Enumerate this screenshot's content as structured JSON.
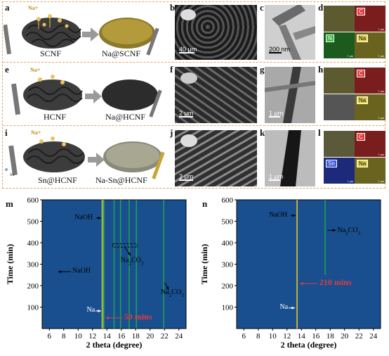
{
  "panels": {
    "a": "a",
    "b": "b",
    "c": "c",
    "d": "d",
    "e": "e",
    "f": "f",
    "g": "g",
    "h": "h",
    "i": "i",
    "j": "j",
    "k": "k",
    "l": "l",
    "m": "m",
    "n": "n"
  },
  "row1": {
    "ion": "Na+",
    "left": "SCNF",
    "right": "Na@SCNF",
    "b_scale": "40 μm",
    "c_scale": "200 nm",
    "maps": [
      "C",
      "N",
      "Na"
    ]
  },
  "row2": {
    "ion": "Na+",
    "left": "HCNF",
    "right": "Na@HCNF",
    "f_scale": "2 μm",
    "g_scale": "1 μm",
    "maps": [
      "C",
      "Na"
    ]
  },
  "row3": {
    "ion": "Na+",
    "sn": "Sn",
    "left": "Sn@HCNF",
    "right": "Na-Sn@HCNF",
    "j_scale": "2 μm",
    "k_scale": "1 μm",
    "maps": [
      "C",
      "Sn",
      "Na"
    ]
  },
  "map_scale": "1 μm",
  "colors": {
    "frame": "#e9a265",
    "heatmap_bg": "#1a4f8f",
    "annot_red": "#e23b3b"
  },
  "chart_data": [
    {
      "type": "heatmap",
      "panel": "m",
      "xlabel": "2 theta (degree)",
      "ylabel": "Time (min)",
      "xlim": [
        5,
        25
      ],
      "ylim": [
        0,
        600
      ],
      "xticks": [
        6,
        8,
        10,
        12,
        14,
        16,
        18,
        20,
        22,
        24
      ],
      "yticks": [
        100,
        200,
        300,
        400,
        500,
        600
      ],
      "peaks": [
        {
          "x": 13.35,
          "y_start": 0,
          "y_end": 600,
          "color": "#ffd21f"
        },
        {
          "x": 13.55,
          "y_start": 0,
          "y_end": 600,
          "color": "#2bd04a"
        },
        {
          "x": 15.0,
          "y_start": 0,
          "y_end": 600,
          "color": "#19a94d"
        },
        {
          "x": 15.9,
          "y_start": 0,
          "y_end": 600,
          "color": "#19a94d"
        },
        {
          "x": 17.1,
          "y_start": 0,
          "y_end": 600,
          "color": "#19a94d"
        },
        {
          "x": 18.1,
          "y_start": 0,
          "y_end": 600,
          "color": "#19a94d"
        },
        {
          "x": 21.9,
          "y_start": 0,
          "y_end": 600,
          "color": "#19a94d"
        }
      ],
      "annotations": {
        "naoh_top": "NaOH",
        "naoh_mid": "NaOH",
        "na2co3_box": "Na2CO3",
        "na2co3_right": "Na2CO3",
        "na": "Na",
        "time_mark": "50 mins"
      }
    },
    {
      "type": "heatmap",
      "panel": "n",
      "xlabel": "2 theta (degree)",
      "ylabel": "Time (min)",
      "xlim": [
        5,
        25
      ],
      "ylim": [
        0,
        600
      ],
      "xticks": [
        6,
        8,
        10,
        12,
        14,
        16,
        18,
        20,
        22,
        24
      ],
      "yticks": [
        100,
        200,
        300,
        400,
        500,
        600
      ],
      "peaks": [
        {
          "x": 13.4,
          "y_start": 0,
          "y_end": 600,
          "color": "#ffd21f"
        },
        {
          "x": 17.3,
          "y_start": 250,
          "y_end": 600,
          "color": "#19a94d"
        }
      ],
      "annotations": {
        "naoh": "NaOH",
        "na2co3": "Na2CO3",
        "na": "Na",
        "time_mark": "210 mins"
      }
    }
  ]
}
